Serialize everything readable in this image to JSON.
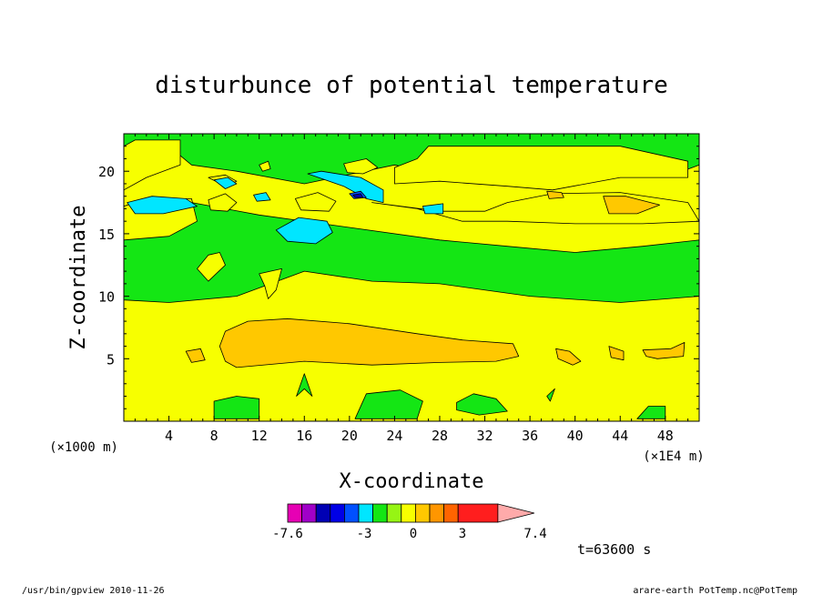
{
  "chart_data": {
    "type": "contour",
    "title": "disturbunce of potential temperature",
    "xlabel": "X-coordinate",
    "ylabel": "Z-coordinate",
    "x_unit_left": "(×1000 m)",
    "x_unit_right": "(×1E4 m)",
    "xlim": [
      0,
      51
    ],
    "ylim": [
      0,
      23
    ],
    "x_ticks": [
      4,
      8,
      12,
      16,
      20,
      24,
      28,
      32,
      36,
      40,
      44,
      48
    ],
    "y_ticks": [
      5,
      10,
      15,
      20
    ],
    "x_tick_labels": [
      "4",
      "8",
      "12",
      "16",
      "20",
      "24",
      "28",
      "32",
      "36",
      "40",
      "44",
      "48"
    ],
    "y_tick_labels": [
      "5",
      "10",
      "15",
      "20"
    ],
    "background_color": "#f7ff00",
    "regions": [
      {
        "level": "green",
        "color": "#14e614",
        "points": [
          [
            0,
            16.5
          ],
          [
            6,
            17.5
          ],
          [
            12,
            16.5
          ],
          [
            20,
            15.5
          ],
          [
            28,
            14.5
          ],
          [
            34,
            14
          ],
          [
            40,
            13.5
          ],
          [
            46,
            14
          ],
          [
            51,
            14.5
          ],
          [
            51,
            10
          ],
          [
            44,
            9.5
          ],
          [
            36,
            10
          ],
          [
            28,
            11
          ],
          [
            22,
            11.2
          ],
          [
            16,
            12
          ],
          [
            10,
            10
          ],
          [
            4,
            9.5
          ],
          [
            0,
            9.7
          ]
        ]
      },
      {
        "level": "green",
        "color": "#14e614",
        "points": [
          [
            0,
            16.5
          ],
          [
            0,
            23
          ],
          [
            51,
            23
          ],
          [
            51,
            20.5
          ],
          [
            48,
            19.5
          ],
          [
            38,
            19.5
          ],
          [
            28,
            19.7
          ],
          [
            24,
            20.5
          ],
          [
            16,
            19
          ],
          [
            10,
            20
          ],
          [
            6,
            20.5
          ],
          [
            4,
            22
          ],
          [
            0,
            22
          ]
        ]
      },
      {
        "level": "green",
        "color": "#14e614",
        "points": [
          [
            8,
            0.2
          ],
          [
            12,
            0.2
          ],
          [
            12,
            1.8
          ],
          [
            10,
            2.0
          ],
          [
            8,
            1.6
          ]
        ]
      },
      {
        "level": "green",
        "color": "#14e614",
        "points": [
          [
            20.5,
            0.2
          ],
          [
            26,
            0.2
          ],
          [
            26.5,
            1.6
          ],
          [
            24.5,
            2.5
          ],
          [
            21.5,
            2.2
          ]
        ]
      },
      {
        "level": "green",
        "color": "#14e614",
        "points": [
          [
            29.5,
            1.5
          ],
          [
            31,
            2.2
          ],
          [
            33,
            1.8
          ],
          [
            34,
            0.8
          ],
          [
            31.5,
            0.5
          ],
          [
            29.5,
            0.9
          ]
        ]
      },
      {
        "level": "green",
        "color": "#14e614",
        "points": [
          [
            45.5,
            0.2
          ],
          [
            48,
            0.2
          ],
          [
            48,
            1.2
          ],
          [
            46.5,
            1.2
          ]
        ]
      },
      {
        "level": "green",
        "color": "#14e614",
        "points": [
          [
            37.5,
            2.0
          ],
          [
            38.2,
            2.6
          ],
          [
            37.8,
            1.6
          ]
        ]
      },
      {
        "level": "green",
        "color": "#14e614",
        "points": [
          [
            15.3,
            2.0
          ],
          [
            16,
            3.8
          ],
          [
            16.7,
            2.0
          ],
          [
            16,
            2.6
          ]
        ]
      },
      {
        "level": "yellow",
        "color": "#f7ff00",
        "points": [
          [
            0,
            14.5
          ],
          [
            4,
            14.8
          ],
          [
            6.5,
            16
          ],
          [
            6,
            17.8
          ],
          [
            2,
            17.8
          ],
          [
            0,
            17.2
          ]
        ]
      },
      {
        "level": "yellow",
        "color": "#f7ff00",
        "points": [
          [
            0,
            18.5
          ],
          [
            2,
            19.5
          ],
          [
            5,
            20.5
          ],
          [
            5,
            22.5
          ],
          [
            1,
            22.5
          ],
          [
            0,
            22
          ]
        ]
      },
      {
        "level": "yellow",
        "color": "#f7ff00",
        "points": [
          [
            24,
            19
          ],
          [
            28,
            19.2
          ],
          [
            34,
            18.8
          ],
          [
            38,
            18.5
          ],
          [
            44,
            19.5
          ],
          [
            50,
            19.5
          ],
          [
            50,
            20.8
          ],
          [
            44,
            22
          ],
          [
            35,
            22
          ],
          [
            27,
            22
          ],
          [
            26,
            21
          ],
          [
            24,
            20.3
          ]
        ]
      },
      {
        "level": "yellow",
        "color": "#f7ff00",
        "points": [
          [
            22,
            17.5
          ],
          [
            28,
            16.8
          ],
          [
            32,
            16.8
          ],
          [
            34,
            17.5
          ],
          [
            38,
            18.2
          ],
          [
            44,
            18.3
          ],
          [
            50,
            17.5
          ],
          [
            51,
            16
          ],
          [
            46,
            15.8
          ],
          [
            40,
            15.8
          ],
          [
            34,
            16
          ],
          [
            30,
            16
          ],
          [
            26,
            17
          ]
        ]
      },
      {
        "level": "yellow",
        "color": "#f7ff00",
        "points": [
          [
            6.5,
            12.2
          ],
          [
            7.5,
            13.3
          ],
          [
            8.5,
            13.5
          ],
          [
            9,
            12.5
          ],
          [
            7.5,
            11.2
          ]
        ]
      },
      {
        "level": "yellow",
        "color": "#f7ff00",
        "points": [
          [
            12,
            11.8
          ],
          [
            14,
            12.2
          ],
          [
            13.5,
            10.5
          ],
          [
            12.8,
            9.8
          ],
          [
            12.5,
            10.8
          ]
        ]
      },
      {
        "level": "yellow",
        "color": "#f7ff00",
        "points": [
          [
            7.5,
            17.7
          ],
          [
            9,
            18.2
          ],
          [
            10,
            17.5
          ],
          [
            9.2,
            16.8
          ],
          [
            7.7,
            16.9
          ]
        ]
      },
      {
        "level": "yellow",
        "color": "#f7ff00",
        "points": [
          [
            7.5,
            19.5
          ],
          [
            9,
            19.7
          ],
          [
            10,
            19.2
          ],
          [
            9,
            18.8
          ]
        ]
      },
      {
        "level": "yellow",
        "color": "#f7ff00",
        "points": [
          [
            12,
            20.5
          ],
          [
            12.8,
            20.8
          ],
          [
            13,
            20.2
          ],
          [
            12.3,
            20.0
          ]
        ]
      },
      {
        "level": "yellow",
        "color": "#f7ff00",
        "points": [
          [
            15.2,
            17.8
          ],
          [
            17.2,
            18.3
          ],
          [
            18.8,
            17.6
          ],
          [
            18.2,
            16.8
          ],
          [
            15.7,
            16.9
          ]
        ]
      },
      {
        "level": "yellow",
        "color": "#f7ff00",
        "points": [
          [
            19.5,
            20.6
          ],
          [
            21.5,
            21
          ],
          [
            22.5,
            20.3
          ],
          [
            21.2,
            19.8
          ],
          [
            19.8,
            19.9
          ]
        ]
      },
      {
        "level": "light-blue",
        "color": "#00e6ff",
        "points": [
          [
            0.3,
            17.5
          ],
          [
            2.5,
            18
          ],
          [
            5.5,
            17.8
          ],
          [
            6.5,
            17.2
          ],
          [
            3.5,
            16.6
          ],
          [
            1,
            16.6
          ]
        ]
      },
      {
        "level": "light-blue",
        "color": "#00e6ff",
        "points": [
          [
            13.5,
            15.3
          ],
          [
            15.5,
            16.3
          ],
          [
            18,
            16
          ],
          [
            18.5,
            15.1
          ],
          [
            17,
            14.2
          ],
          [
            14.5,
            14.4
          ]
        ]
      },
      {
        "level": "light-blue",
        "color": "#00e6ff",
        "points": [
          [
            16.3,
            19.8
          ],
          [
            19.5,
            18.8
          ],
          [
            21.5,
            17.8
          ],
          [
            23,
            17.5
          ],
          [
            23,
            18.5
          ],
          [
            21,
            19.5
          ],
          [
            17.5,
            20.0
          ]
        ]
      },
      {
        "level": "light-blue",
        "color": "#00e6ff",
        "points": [
          [
            8,
            19.3
          ],
          [
            9.2,
            19.5
          ],
          [
            10,
            19
          ],
          [
            9,
            18.6
          ]
        ]
      },
      {
        "level": "light-blue",
        "color": "#00e6ff",
        "points": [
          [
            11.5,
            18.1
          ],
          [
            12.6,
            18.3
          ],
          [
            13,
            17.7
          ],
          [
            11.8,
            17.6
          ]
        ]
      },
      {
        "level": "light-blue",
        "color": "#00e6ff",
        "points": [
          [
            26.5,
            17.2
          ],
          [
            28.3,
            17.4
          ],
          [
            28.3,
            16.6
          ],
          [
            26.7,
            16.6
          ]
        ]
      },
      {
        "level": "blue",
        "color": "#0050ff",
        "points": [
          [
            20,
            18.2
          ],
          [
            21,
            18.4
          ],
          [
            21.5,
            17.9
          ],
          [
            20.4,
            17.8
          ]
        ]
      },
      {
        "level": "dark-blue",
        "color": "#0000b4",
        "points": [
          [
            20.3,
            18.1
          ],
          [
            21,
            18.2
          ],
          [
            21.2,
            17.9
          ],
          [
            20.5,
            17.9
          ]
        ]
      },
      {
        "level": "orange",
        "color": "#ffc800",
        "points": [
          [
            8.5,
            6.0
          ],
          [
            9,
            7.2
          ],
          [
            11,
            8
          ],
          [
            14.5,
            8.2
          ],
          [
            20,
            7.8
          ],
          [
            26,
            7.0
          ],
          [
            30,
            6.5
          ],
          [
            34.5,
            6.2
          ],
          [
            35,
            5.2
          ],
          [
            33,
            4.8
          ],
          [
            28,
            4.7
          ],
          [
            22,
            4.5
          ],
          [
            16,
            4.8
          ],
          [
            10,
            4.3
          ],
          [
            9,
            4.8
          ]
        ]
      },
      {
        "level": "orange",
        "color": "#ffc800",
        "points": [
          [
            5.5,
            5.6
          ],
          [
            6.8,
            5.8
          ],
          [
            7.2,
            4.9
          ],
          [
            6,
            4.7
          ]
        ]
      },
      {
        "level": "orange",
        "color": "#ffc800",
        "points": [
          [
            38.3,
            5.8
          ],
          [
            39.5,
            5.6
          ],
          [
            40.5,
            4.8
          ],
          [
            39.8,
            4.5
          ],
          [
            38.5,
            5.0
          ]
        ]
      },
      {
        "level": "orange",
        "color": "#ffc800",
        "points": [
          [
            43,
            6.0
          ],
          [
            44.3,
            5.6
          ],
          [
            44.3,
            4.9
          ],
          [
            43.2,
            5.1
          ]
        ]
      },
      {
        "level": "orange",
        "color": "#ffc800",
        "points": [
          [
            46,
            5.7
          ],
          [
            48.5,
            5.8
          ],
          [
            49.7,
            6.3
          ],
          [
            49.6,
            5.2
          ],
          [
            47.3,
            5.0
          ],
          [
            46.3,
            5.2
          ]
        ]
      },
      {
        "level": "orange",
        "color": "#ffc800",
        "points": [
          [
            42.5,
            18.0
          ],
          [
            44.5,
            18.0
          ],
          [
            47.5,
            17.3
          ],
          [
            45.5,
            16.6
          ],
          [
            43,
            16.6
          ]
        ]
      },
      {
        "level": "orange",
        "color": "#ffc800",
        "points": [
          [
            37.5,
            18.4
          ],
          [
            38.8,
            18.3
          ],
          [
            39,
            17.9
          ],
          [
            37.7,
            17.8
          ]
        ]
      }
    ],
    "colorbar": {
      "colors": [
        "#e600b4",
        "#a000c8",
        "#0000b4",
        "#0000e6",
        "#0050ff",
        "#00e6ff",
        "#14e614",
        "#96f514",
        "#f7ff00",
        "#ffc800",
        "#ff9600",
        "#ff6400",
        "#ff1e1e",
        "#ff7878",
        "#ffaaaa"
      ],
      "tick_labels": [
        "-7.6",
        "-3",
        "0",
        "3",
        "7.4"
      ]
    },
    "time_label": "t=63600 s",
    "footer_left": "/usr/bin/gpview  2010-11-26",
    "footer_right": "arare-earth_PotTemp.nc@PotTemp"
  }
}
